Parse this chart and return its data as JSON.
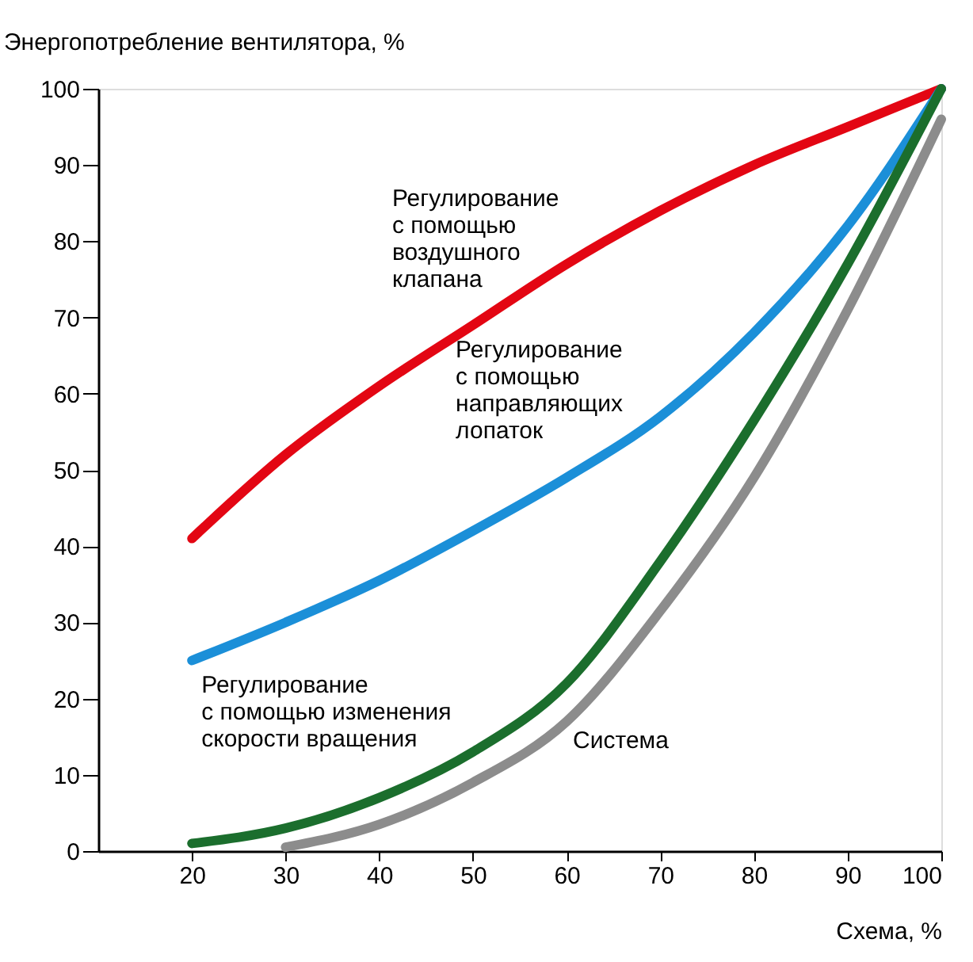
{
  "chart_data": {
    "type": "line",
    "xlabel": "Схема, %",
    "ylabel": "Энергопотребление вентилятора, %",
    "xlim": [
      10,
      100
    ],
    "ylim": [
      0,
      100
    ],
    "xticks": [
      20,
      30,
      40,
      50,
      60,
      70,
      80,
      90,
      100
    ],
    "yticks": [
      0,
      10,
      20,
      30,
      40,
      50,
      60,
      70,
      80,
      90,
      100
    ],
    "grid": false,
    "marker": "none",
    "line_style": "solid",
    "series": [
      {
        "name": "Регулирование\nс помощью\nвоздушного\nклапана",
        "color": "#e30613",
        "x": [
          20,
          30,
          40,
          50,
          60,
          70,
          80,
          90,
          100
        ],
        "values": [
          41,
          52,
          61,
          69,
          77,
          84,
          90,
          95,
          100
        ]
      },
      {
        "name": "Регулирование\nс помощью\nнаправляющих\nлопаток",
        "color": "#1b8fd8",
        "x": [
          20,
          30,
          40,
          50,
          60,
          70,
          80,
          90,
          100
        ],
        "values": [
          25,
          30,
          35.5,
          42,
          49,
          57,
          68,
          82,
          100
        ]
      },
      {
        "name": "Регулирование\nс помощью изменения\nскорости вращения",
        "color": "#1b6e2d",
        "x": [
          20,
          30,
          40,
          50,
          60,
          70,
          80,
          90,
          100
        ],
        "values": [
          1,
          3,
          7,
          13,
          22,
          38,
          56.5,
          77,
          100
        ]
      },
      {
        "name": "Система",
        "color": "#8c8c8c",
        "x": [
          30,
          40,
          50,
          60,
          70,
          80,
          90,
          100
        ],
        "values": [
          0.5,
          3.5,
          9,
          17,
          31.5,
          49,
          71,
          96
        ]
      }
    ]
  }
}
